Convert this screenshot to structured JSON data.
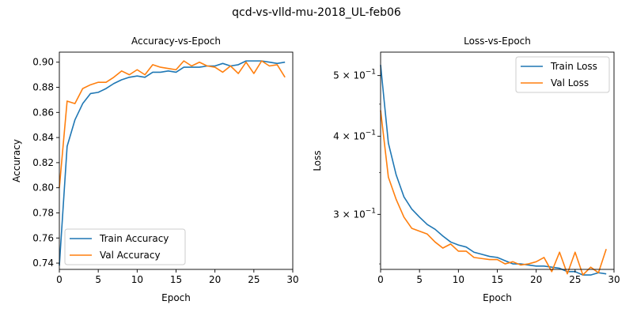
{
  "suptitle": "qcd-vs-vlld-mu-2018_UL-feb06",
  "colors": {
    "train": "#1f77b4",
    "val": "#ff7f0e"
  },
  "chart_data": [
    {
      "type": "line",
      "title": "Accuracy-vs-Epoch",
      "xlabel": "Epoch",
      "ylabel": "Accuracy",
      "xlim": [
        0,
        30
      ],
      "ylim": [
        0.735,
        0.908
      ],
      "yscale": "linear",
      "xticks": [
        0,
        5,
        10,
        15,
        20,
        25,
        30
      ],
      "yticks": [
        0.74,
        0.76,
        0.78,
        0.8,
        0.82,
        0.84,
        0.86,
        0.88,
        0.9
      ],
      "xtick_labels": [
        "0",
        "5",
        "10",
        "15",
        "20",
        "25",
        "30"
      ],
      "ytick_labels": [
        "0.74",
        "0.76",
        "0.78",
        "0.80",
        "0.82",
        "0.84",
        "0.86",
        "0.88",
        "0.90"
      ],
      "grid": false,
      "legend_position": "lower-left",
      "x": [
        0,
        1,
        2,
        3,
        4,
        5,
        6,
        7,
        8,
        9,
        10,
        11,
        12,
        13,
        14,
        15,
        16,
        17,
        18,
        19,
        20,
        21,
        22,
        23,
        24,
        25,
        26,
        27,
        28,
        29
      ],
      "series": [
        {
          "name": "Train Accuracy",
          "color_key": "train",
          "values": [
            0.738,
            0.833,
            0.854,
            0.867,
            0.875,
            0.876,
            0.879,
            0.883,
            0.886,
            0.888,
            0.889,
            0.888,
            0.892,
            0.892,
            0.893,
            0.892,
            0.896,
            0.896,
            0.896,
            0.897,
            0.897,
            0.899,
            0.897,
            0.898,
            0.901,
            0.901,
            0.901,
            0.9,
            0.899,
            0.9
          ]
        },
        {
          "name": "Val Accuracy",
          "color_key": "val",
          "values": [
            0.8,
            0.869,
            0.867,
            0.879,
            0.882,
            0.884,
            0.884,
            0.888,
            0.893,
            0.89,
            0.894,
            0.89,
            0.898,
            0.896,
            0.895,
            0.894,
            0.901,
            0.897,
            0.9,
            0.897,
            0.896,
            0.892,
            0.897,
            0.891,
            0.9,
            0.891,
            0.901,
            0.897,
            0.898,
            0.888
          ]
        }
      ]
    },
    {
      "type": "line",
      "title": "Loss-vs-Epoch",
      "xlabel": "Epoch",
      "ylabel": "Loss",
      "xlim": [
        0,
        30
      ],
      "ylim": [
        0.245,
        0.545
      ],
      "yscale": "log",
      "xticks": [
        0,
        5,
        10,
        15,
        20,
        25,
        30
      ],
      "yticks": [
        0.3,
        0.4,
        0.5
      ],
      "xtick_labels": [
        "0",
        "5",
        "10",
        "15",
        "20",
        "25",
        "30"
      ],
      "ytick_labels": [
        {
          "base": "3 × 10",
          "exp": "−1"
        },
        {
          "base": "4 × 10",
          "exp": "−1"
        },
        {
          "base": "5 × 10",
          "exp": "−1"
        }
      ],
      "grid": false,
      "legend_position": "upper-right",
      "x": [
        0,
        1,
        2,
        3,
        4,
        5,
        6,
        7,
        8,
        9,
        10,
        11,
        12,
        13,
        14,
        15,
        16,
        17,
        18,
        19,
        20,
        21,
        22,
        23,
        24,
        25,
        26,
        27,
        28,
        29
      ],
      "series": [
        {
          "name": "Train Loss",
          "color_key": "train",
          "values": [
            0.52,
            0.39,
            0.347,
            0.32,
            0.306,
            0.297,
            0.289,
            0.284,
            0.277,
            0.271,
            0.268,
            0.266,
            0.261,
            0.259,
            0.257,
            0.256,
            0.253,
            0.25,
            0.25,
            0.249,
            0.248,
            0.248,
            0.247,
            0.246,
            0.243,
            0.243,
            0.24,
            0.24,
            0.242,
            0.241
          ]
        },
        {
          "name": "Val Loss",
          "color_key": "val",
          "values": [
            0.44,
            0.344,
            0.317,
            0.297,
            0.285,
            0.282,
            0.279,
            0.271,
            0.265,
            0.269,
            0.262,
            0.262,
            0.256,
            0.255,
            0.254,
            0.254,
            0.25,
            0.252,
            0.249,
            0.25,
            0.252,
            0.256,
            0.243,
            0.261,
            0.241,
            0.261,
            0.24,
            0.247,
            0.242,
            0.264
          ]
        }
      ]
    }
  ]
}
